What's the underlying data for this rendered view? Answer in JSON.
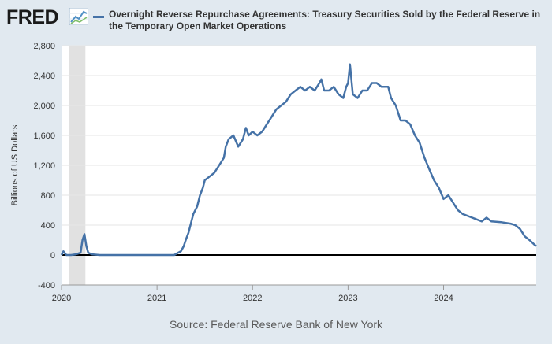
{
  "header": {
    "logo_text": "FRED",
    "logo_icon": "fred-chart-logo-icon",
    "title": "Overnight Reverse Repurchase Agreements: Treasury Securities Sold by the Federal Reserve in the Temporary Open Market Operations"
  },
  "source": "Source: Federal Reserve Bank of New York",
  "colors": {
    "background": "#e1e9f0",
    "plot_background": "#ffffff",
    "series": "#4572a7",
    "recession": "#e1e1e1",
    "zero_line": "#000000"
  },
  "chart_data": {
    "type": "line",
    "title": "Overnight Reverse Repurchase Agreements: Treasury Securities Sold by the Federal Reserve in the Temporary Open Market Operations",
    "ylabel": "Billions of US Dollars",
    "xlabel": "",
    "ylim": [
      -400,
      2800
    ],
    "xlim": [
      2020.0,
      2024.97
    ],
    "yticks": [
      -400,
      0,
      400,
      800,
      1200,
      1600,
      2000,
      2400,
      2800
    ],
    "ytick_labels": [
      "-400",
      "0",
      "400",
      "800",
      "1,200",
      "1,600",
      "2,000",
      "2,400",
      "2,800"
    ],
    "xticks": [
      2020,
      2021,
      2022,
      2023,
      2024
    ],
    "xtick_labels": [
      "2020",
      "2021",
      "2022",
      "2023",
      "2024"
    ],
    "grid": true,
    "legend": "top",
    "recession_shading": [
      [
        2020.08,
        2020.25
      ]
    ],
    "series": [
      {
        "name": "Overnight Reverse Repurchase Agreements: Treasury Securities Sold by the Federal Reserve in the Temporary Open Market Operations",
        "x": [
          2020.0,
          2020.02,
          2020.05,
          2020.1,
          2020.15,
          2020.2,
          2020.22,
          2020.24,
          2020.26,
          2020.28,
          2020.32,
          2020.4,
          2020.5,
          2020.7,
          2020.9,
          2021.0,
          2021.1,
          2021.18,
          2021.22,
          2021.25,
          2021.28,
          2021.3,
          2021.33,
          2021.36,
          2021.38,
          2021.42,
          2021.45,
          2021.48,
          2021.5,
          2021.55,
          2021.6,
          2021.65,
          2021.7,
          2021.72,
          2021.75,
          2021.8,
          2021.85,
          2021.9,
          2021.93,
          2021.96,
          2022.0,
          2022.05,
          2022.1,
          2022.15,
          2022.2,
          2022.25,
          2022.3,
          2022.35,
          2022.4,
          2022.45,
          2022.5,
          2022.55,
          2022.6,
          2022.65,
          2022.7,
          2022.72,
          2022.75,
          2022.8,
          2022.85,
          2022.9,
          2022.95,
          2022.98,
          2023.0,
          2023.02,
          2023.05,
          2023.1,
          2023.15,
          2023.2,
          2023.25,
          2023.3,
          2023.35,
          2023.42,
          2023.45,
          2023.5,
          2023.55,
          2023.6,
          2023.65,
          2023.7,
          2023.75,
          2023.8,
          2023.85,
          2023.9,
          2023.95,
          2024.0,
          2024.05,
          2024.1,
          2024.15,
          2024.2,
          2024.3,
          2024.4,
          2024.45,
          2024.5,
          2024.6,
          2024.7,
          2024.75,
          2024.8,
          2024.85,
          2024.9,
          2024.95,
          2024.97
        ],
        "y": [
          0,
          50,
          0,
          0,
          10,
          30,
          200,
          280,
          120,
          30,
          10,
          0,
          0,
          0,
          0,
          0,
          0,
          0,
          30,
          50,
          120,
          200,
          300,
          450,
          550,
          650,
          800,
          900,
          1000,
          1050,
          1100,
          1200,
          1300,
          1450,
          1550,
          1600,
          1450,
          1550,
          1700,
          1600,
          1650,
          1600,
          1650,
          1750,
          1850,
          1950,
          2000,
          2050,
          2150,
          2200,
          2250,
          2200,
          2250,
          2200,
          2300,
          2350,
          2200,
          2200,
          2250,
          2150,
          2100,
          2250,
          2300,
          2550,
          2150,
          2100,
          2200,
          2200,
          2300,
          2300,
          2250,
          2250,
          2100,
          2000,
          1800,
          1800,
          1750,
          1600,
          1500,
          1300,
          1150,
          1000,
          900,
          750,
          800,
          700,
          600,
          550,
          500,
          450,
          500,
          450,
          440,
          420,
          400,
          350,
          250,
          200,
          140,
          120
        ]
      }
    ]
  }
}
